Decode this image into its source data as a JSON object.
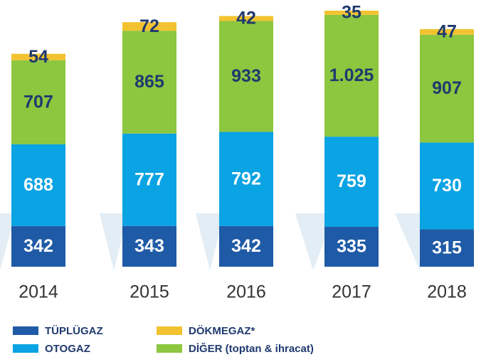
{
  "chart_data": {
    "type": "stacked_bar",
    "categories": [
      "2014",
      "2015",
      "2016",
      "2017",
      "2018"
    ],
    "series": [
      {
        "name": "TÜPLÜGAZ",
        "color": "#1f5aa6",
        "values": [
          342,
          343,
          342,
          335,
          315
        ]
      },
      {
        "name": "OTOGAZ",
        "color": "#0aa3e3",
        "values": [
          688,
          777,
          792,
          759,
          730
        ]
      },
      {
        "name": "DİĞER (toptan & ihracat)",
        "color": "#8dc63f",
        "values": [
          707,
          865,
          933,
          1025,
          907
        ],
        "value_labels": [
          "707",
          "865",
          "933",
          "1.025",
          "907"
        ]
      },
      {
        "name": "DÖKMEGAZ*",
        "color": "#f2c230",
        "values": [
          54,
          72,
          42,
          35,
          47
        ]
      }
    ]
  }
}
